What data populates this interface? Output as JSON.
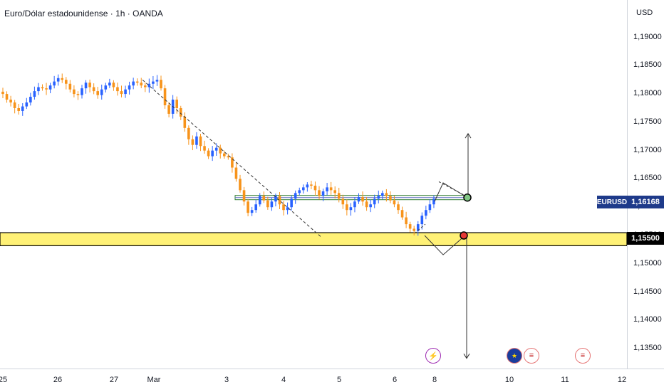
{
  "title": "Euro/Dólar estadounidense · 1h · OANDA",
  "currency": "USD",
  "symbol_label": "EURUSD",
  "current_price": "1,16168",
  "level_price": "1,15500",
  "colors": {
    "bull": "#2962ff",
    "bear": "#f7931a",
    "accent": "#1e3a8a",
    "zone": "#fff176"
  },
  "events": [
    {
      "name": "flash-icon",
      "glyph": "⚡"
    },
    {
      "name": "eu-flag-icon",
      "glyph": "★"
    },
    {
      "name": "us-flag-icon",
      "glyph": "≡"
    },
    {
      "name": "us-flag-icon",
      "glyph": "≡"
    }
  ],
  "chart_data": {
    "type": "candlestick",
    "title": "Euro/Dólar estadounidense · 1h · OANDA",
    "y_ticks": [
      "1,19000",
      "1,18500",
      "1,18000",
      "1,17500",
      "1,17000",
      "1,16500",
      "1,16000",
      "1,15500",
      "1,15000",
      "1,14500",
      "1,14000",
      "1,13500"
    ],
    "y_tick_values": [
      1.19,
      1.185,
      1.18,
      1.175,
      1.17,
      1.165,
      1.16,
      1.155,
      1.15,
      1.145,
      1.14,
      1.135
    ],
    "x_ticks": [
      "25",
      "26",
      "27",
      "Mar",
      "3",
      "4",
      "5",
      "6",
      "8",
      "10",
      "11",
      "12"
    ],
    "ylim": [
      1.1315,
      1.1966
    ],
    "support_zone": [
      1.1532,
      1.1555
    ],
    "resistance_level": 1.1617,
    "close_series": [
      1.18,
      1.179,
      1.1785,
      1.1775,
      1.177,
      1.1778,
      1.1785,
      1.1795,
      1.1805,
      1.1812,
      1.181,
      1.1808,
      1.1815,
      1.1822,
      1.1828,
      1.1825,
      1.1818,
      1.1808,
      1.18,
      1.1798,
      1.181,
      1.182,
      1.1812,
      1.1805,
      1.1798,
      1.1808,
      1.1815,
      1.182,
      1.1812,
      1.1805,
      1.18,
      1.1808,
      1.1815,
      1.1822,
      1.182,
      1.1815,
      1.1812,
      1.1818,
      1.1822,
      1.1825,
      1.181,
      1.178,
      1.1765,
      1.179,
      1.1775,
      1.176,
      1.174,
      1.172,
      1.171,
      1.1725,
      1.1708,
      1.17,
      1.169,
      1.17,
      1.1705,
      1.1695,
      1.169,
      1.1688,
      1.167,
      1.165,
      1.163,
      1.161,
      1.159,
      1.1595,
      1.1605,
      1.162,
      1.1612,
      1.16,
      1.161,
      1.162,
      1.1605,
      1.1595,
      1.16,
      1.1615,
      1.1625,
      1.163,
      1.1635,
      1.164,
      1.1638,
      1.163,
      1.162,
      1.1628,
      1.1635,
      1.163,
      1.1625,
      1.1615,
      1.1605,
      1.1595,
      1.16,
      1.161,
      1.1618,
      1.161,
      1.16,
      1.1605,
      1.1615,
      1.162,
      1.1625,
      1.162,
      1.1612,
      1.1605,
      1.1595,
      1.1582,
      1.157,
      1.1562,
      1.1558,
      1.157,
      1.1585,
      1.1595,
      1.1605,
      1.1615
    ]
  }
}
